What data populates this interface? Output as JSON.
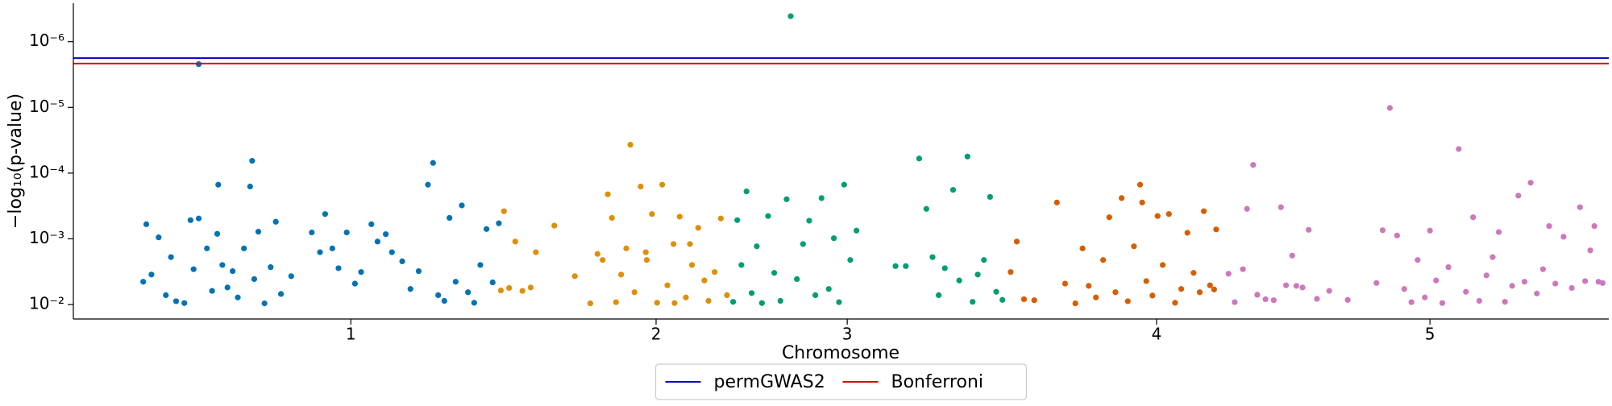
{
  "chart_data": {
    "type": "scatter",
    "xlabel": "Chromosome",
    "ylabel": "−log₁₀(p-value)",
    "yscale": "log",
    "xlim": [
      0,
      1494
    ],
    "ylim": [
      0.0166,
      2.6e-07
    ],
    "xticks": [
      {
        "value": 270,
        "label": "1"
      },
      {
        "value": 567,
        "label": "2"
      },
      {
        "value": 753,
        "label": "3"
      },
      {
        "value": 1054,
        "label": "4"
      },
      {
        "value": 1320,
        "label": "5"
      }
    ],
    "yticks": [
      {
        "value": 1e-06,
        "label": "10⁻⁶"
      },
      {
        "value": 1e-05,
        "label": "10⁻⁵"
      },
      {
        "value": 0.0001,
        "label": "10⁻⁴"
      },
      {
        "value": 0.001,
        "label": "10⁻³"
      },
      {
        "value": 0.01,
        "label": "10⁻²"
      }
    ],
    "legend": "lower center",
    "series": [
      {
        "color": "#0173b2",
        "x": [
          68,
          71,
          76,
          83,
          90,
          95,
          100,
          108,
          114,
          117,
          122,
          122,
          130,
          135,
          140,
          141,
          145,
          150,
          155,
          160,
          166,
          172,
          174,
          176,
          180,
          186,
          192,
          197,
          202,
          212,
          232,
          240,
          245,
          252,
          258,
          266,
          274,
          280,
          290,
          296,
          304,
          310,
          320,
          328,
          336,
          345,
          350,
          355,
          361,
          366,
          372,
          378,
          384,
          390,
          396,
          402,
          408,
          414
        ],
        "values": [
          0.0045,
          0.0006,
          0.0035,
          0.00095,
          0.0072,
          0.0019,
          0.0089,
          0.0095,
          0.00052,
          0.0029,
          2.2e-06,
          0.00049,
          0.0014,
          0.0062,
          0.00084,
          0.00015,
          0.0025,
          0.0055,
          0.0031,
          0.0078,
          0.0014,
          0.00016,
          6.5e-05,
          0.0041,
          0.00078,
          0.0096,
          0.0027,
          0.00055,
          0.0069,
          0.0037,
          0.0008,
          0.0016,
          0.00042,
          0.0014,
          0.0028,
          0.0008,
          0.0048,
          0.0032,
          0.0006,
          0.0011,
          0.00085,
          0.0016,
          0.0022,
          0.0058,
          0.0031,
          0.00015,
          7e-05,
          0.0072,
          0.0088,
          0.00048,
          0.0045,
          0.00031,
          0.0065,
          0.0094,
          0.0025,
          0.00071,
          0.0046,
          0.00058
        ]
      },
      {
        "color": "#de8f05",
        "x": [
          416,
          419,
          424,
          430,
          437,
          445,
          450,
          468,
          488,
          503,
          510,
          515,
          520,
          524,
          528,
          533,
          538,
          542,
          546,
          552,
          557,
          558,
          563,
          568,
          573,
          578,
          584,
          585,
          590,
          596,
          600,
          602,
          608,
          614,
          618,
          624,
          630,
          636
        ],
        "values": [
          0.0061,
          0.00038,
          0.0056,
          0.0011,
          0.0062,
          0.0055,
          0.0016,
          0.00063,
          0.0037,
          0.0096,
          0.0017,
          0.0021,
          0.00021,
          0.00048,
          0.0092,
          0.0035,
          0.0014,
          3.7e-05,
          0.0065,
          0.00016,
          0.0016,
          0.0021,
          0.00042,
          0.0094,
          0.00015,
          0.0051,
          0.0012,
          0.0095,
          0.00046,
          0.0078,
          0.0012,
          0.0025,
          0.00068,
          0.0043,
          0.0088,
          0.0032,
          0.00049,
          0.0072
        ]
      },
      {
        "color": "#029e73",
        "x": [
          642,
          646,
          650,
          655,
          660,
          665,
          670,
          676,
          682,
          688,
          694,
          698,
          704,
          710,
          716,
          722,
          728,
          735,
          740,
          745,
          750,
          756,
          762,
          800,
          810,
          823,
          830,
          836,
          842,
          848,
          856,
          862,
          870,
          875,
          880,
          886,
          892,
          898,
          904
        ],
        "values": [
          0.0091,
          0.00052,
          0.0025,
          0.00019,
          0.0067,
          0.0013,
          0.0095,
          0.00045,
          0.0033,
          0.0088,
          0.00025,
          4.1e-07,
          0.0041,
          0.0012,
          0.00053,
          0.0072,
          0.00024,
          0.0058,
          0.00098,
          0.0092,
          0.00015,
          0.0021,
          0.00075,
          0.0026,
          0.0026,
          6e-05,
          0.00035,
          0.0019,
          0.0072,
          0.0028,
          0.00018,
          0.0043,
          5.6e-05,
          0.0091,
          0.0035,
          0.0021,
          0.00023,
          0.0064,
          0.0085
        ]
      },
      {
        "color": "#d55e00",
        "x": [
          912,
          918,
          925,
          935,
          957,
          965,
          975,
          982,
          988,
          995,
          1002,
          1008,
          1014,
          1020,
          1026,
          1032,
          1038,
          1040,
          1044,
          1050,
          1055,
          1060,
          1066,
          1072,
          1078,
          1084,
          1090,
          1096,
          1100,
          1106,
          1110,
          1112
        ],
        "values": [
          0.0032,
          0.0011,
          0.0083,
          0.0086,
          0.00028,
          0.0048,
          0.0096,
          0.0014,
          0.0052,
          0.0078,
          0.0021,
          0.00047,
          0.0065,
          0.00024,
          0.0089,
          0.0013,
          0.00015,
          0.00028,
          0.0044,
          0.0073,
          0.00045,
          0.0025,
          0.00042,
          0.0094,
          0.0058,
          0.00081,
          0.0033,
          0.0065,
          0.00038,
          0.0051,
          0.0059,
          0.00072
        ]
      },
      {
        "color": "#cc78bc",
        "x": [
          1124,
          1130,
          1138,
          1142,
          1148,
          1152,
          1160,
          1168,
          1175,
          1180,
          1186,
          1190,
          1196,
          1202,
          1210,
          1222,
          1240,
          1268,
          1274,
          1281,
          1288,
          1295,
          1302,
          1308,
          1315,
          1320,
          1326,
          1332,
          1338,
          1348,
          1355,
          1362,
          1368,
          1375,
          1381,
          1387,
          1393,
          1400,
          1406,
          1412,
          1418,
          1424,
          1430,
          1436,
          1442,
          1450,
          1458,
          1466,
          1471,
          1476,
          1480,
          1484,
          1488
        ],
        "values": [
          0.0034,
          0.0092,
          0.0029,
          0.00035,
          7.5e-05,
          0.0071,
          0.0083,
          0.0086,
          0.00033,
          0.0051,
          0.0018,
          0.0052,
          0.0055,
          0.00073,
          0.0082,
          0.0062,
          0.0085,
          0.0047,
          0.00074,
          1.02e-05,
          0.00089,
          0.0058,
          0.0092,
          0.0021,
          0.0078,
          0.00075,
          0.0043,
          0.0095,
          0.0027,
          4.3e-05,
          0.0064,
          0.00047,
          0.0088,
          0.0036,
          0.0019,
          0.00079,
          0.0091,
          0.0052,
          0.00022,
          0.0045,
          0.00014,
          0.0068,
          0.0029,
          0.00064,
          0.0048,
          0.00093,
          0.0056,
          0.00033,
          0.0044,
          0.0015,
          0.00064,
          0.0045,
          0.0047
        ]
      }
    ],
    "lines": [
      {
        "name": "permGWAS2",
        "color": "#0000cc",
        "value": 1.78e-06
      },
      {
        "name": "Bonferroni",
        "color": "#dd0000",
        "value": 2.15e-06
      }
    ]
  }
}
